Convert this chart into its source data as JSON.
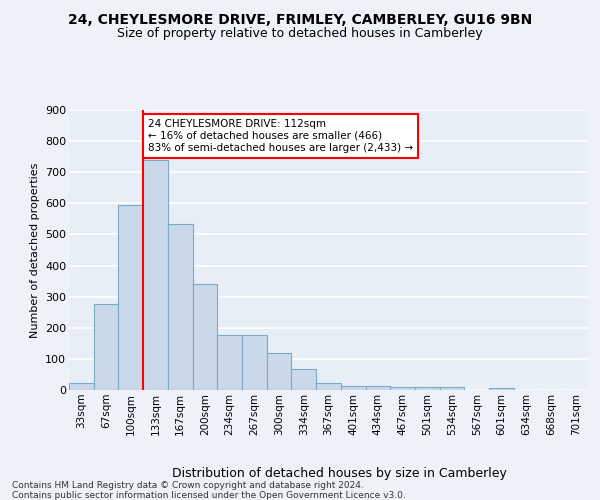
{
  "title": "24, CHEYLESMORE DRIVE, FRIMLEY, CAMBERLEY, GU16 9BN",
  "subtitle": "Size of property relative to detached houses in Camberley",
  "xlabel": "Distribution of detached houses by size in Camberley",
  "ylabel": "Number of detached properties",
  "bar_color": "#c9d9ea",
  "bar_edge_color": "#7aaac8",
  "bin_labels": [
    "33sqm",
    "67sqm",
    "100sqm",
    "133sqm",
    "167sqm",
    "200sqm",
    "234sqm",
    "267sqm",
    "300sqm",
    "334sqm",
    "367sqm",
    "401sqm",
    "434sqm",
    "467sqm",
    "501sqm",
    "534sqm",
    "567sqm",
    "601sqm",
    "634sqm",
    "668sqm",
    "701sqm"
  ],
  "bar_values": [
    22,
    275,
    595,
    740,
    535,
    340,
    178,
    178,
    118,
    67,
    22,
    13,
    12,
    9,
    10,
    9,
    0,
    8,
    0,
    0,
    0
  ],
  "ylim": [
    0,
    900
  ],
  "yticks": [
    0,
    100,
    200,
    300,
    400,
    500,
    600,
    700,
    800,
    900
  ],
  "annotation_title": "24 CHEYLESMORE DRIVE: 112sqm",
  "annotation_line1": "← 16% of detached houses are smaller (466)",
  "annotation_line2": "83% of semi-detached houses are larger (2,433) →",
  "vline_x": 2.5,
  "footer_line1": "Contains HM Land Registry data © Crown copyright and database right 2024.",
  "footer_line2": "Contains public sector information licensed under the Open Government Licence v3.0.",
  "background_color": "#eef2f8",
  "plot_bg_color": "#e8eef6",
  "grid_color": "#ffffff",
  "title_fontsize": 10,
  "subtitle_fontsize": 9,
  "xlabel_fontsize": 9,
  "ylabel_fontsize": 8,
  "tick_fontsize": 7.5,
  "annotation_fontsize": 7.5,
  "footer_fontsize": 6.5
}
